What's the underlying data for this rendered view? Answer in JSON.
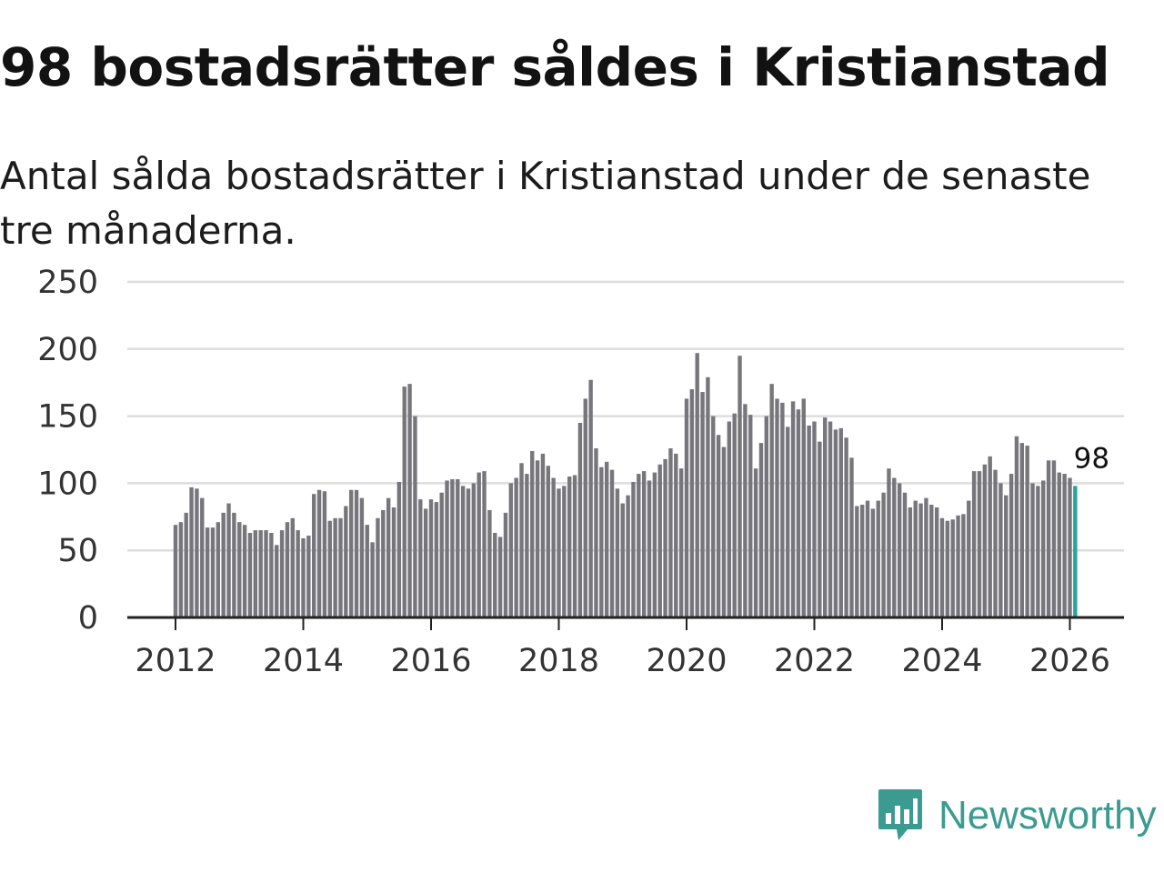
{
  "title": "98 bostadsrätter såldes i Kristianstad",
  "subtitle": "Antal sålda bostadsrätter i Kristianstad under de senaste tre månaderna.",
  "brand": {
    "name": "Newsworthy",
    "icon": "newsworthy-logo-icon",
    "color": "#3b9b91"
  },
  "colors": {
    "bar": "#76767c",
    "highlight": "#26a69a",
    "grid": "#dddddd",
    "axis": "#222222"
  },
  "chart_data": {
    "type": "bar",
    "title": "98 bostadsrätter såldes i Kristianstad",
    "xlabel": "",
    "ylabel": "",
    "ylim": [
      0,
      250
    ],
    "yticks": [
      0,
      50,
      100,
      150,
      200,
      250
    ],
    "xticks": [
      "2012",
      "2014",
      "2016",
      "2018",
      "2020",
      "2022",
      "2024",
      "2026"
    ],
    "grid": true,
    "start": "2012-01",
    "end": "2026-02",
    "highlight_label": "98",
    "values": [
      69,
      71,
      78,
      97,
      96,
      89,
      67,
      67,
      71,
      78,
      85,
      78,
      71,
      69,
      63,
      65,
      65,
      65,
      63,
      54,
      65,
      71,
      74,
      65,
      59,
      61,
      92,
      95,
      94,
      72,
      74,
      74,
      83,
      95,
      95,
      89,
      69,
      56,
      74,
      80,
      89,
      82,
      101,
      172,
      174,
      150,
      88,
      81,
      88,
      86,
      93,
      102,
      103,
      103,
      98,
      96,
      100,
      108,
      109,
      80,
      63,
      60,
      78,
      100,
      104,
      115,
      107,
      124,
      117,
      122,
      113,
      104,
      96,
      98,
      105,
      106,
      145,
      163,
      177,
      126,
      112,
      116,
      110,
      96,
      85,
      91,
      101,
      107,
      109,
      102,
      108,
      114,
      118,
      126,
      122,
      111,
      163,
      170,
      197,
      168,
      179,
      150,
      136,
      127,
      146,
      152,
      195,
      159,
      151,
      111,
      130,
      150,
      174,
      163,
      160,
      142,
      161,
      155,
      163,
      143,
      146,
      131,
      149,
      146,
      140,
      141,
      134,
      119,
      83,
      84,
      87,
      81,
      87,
      93,
      111,
      104,
      100,
      93,
      82,
      87,
      85,
      89,
      84,
      82,
      74,
      72,
      73,
      76,
      77,
      87,
      109,
      109,
      114,
      120,
      110,
      100,
      91,
      107,
      135,
      130,
      128,
      100,
      98,
      102,
      117,
      117,
      108,
      107,
      104,
      98
    ]
  }
}
